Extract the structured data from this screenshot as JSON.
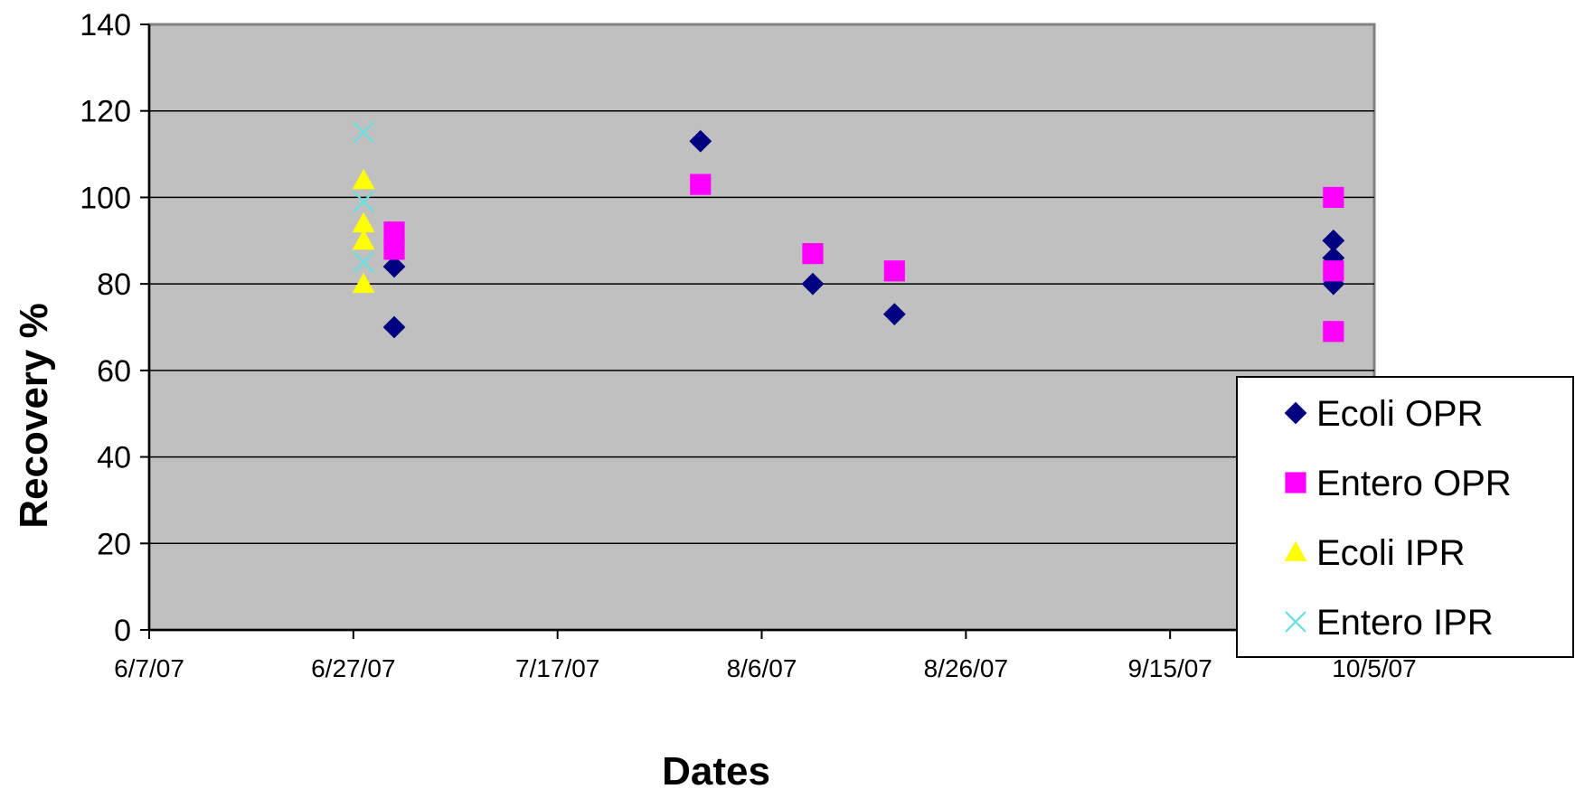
{
  "chart_data": {
    "type": "scatter",
    "title": "",
    "xlabel": "Dates",
    "ylabel": "Recovery %",
    "x_axis": {
      "type": "date",
      "min": "2007-06-07",
      "max": "2007-10-05",
      "ticks": [
        "2007-06-07",
        "2007-06-27",
        "2007-07-17",
        "2007-08-06",
        "2007-08-26",
        "2007-09-15",
        "2007-10-05"
      ],
      "tick_labels": [
        "6/7/07",
        "6/27/07",
        "7/17/07",
        "8/6/07",
        "8/26/07",
        "9/15/07",
        "10/5/07"
      ]
    },
    "y_axis": {
      "min": 0,
      "max": 140,
      "ticks": [
        0,
        20,
        40,
        60,
        80,
        100,
        120,
        140
      ],
      "tick_labels": [
        "0",
        "20",
        "40",
        "60",
        "80",
        "100",
        "120",
        "140"
      ]
    },
    "grid": {
      "y_major": true,
      "x_major": false
    },
    "plot_background": "#c0c0c0",
    "legend_position": "right",
    "series": [
      {
        "name": "Ecoli OPR",
        "marker": "diamond",
        "color": "#000080",
        "points": [
          {
            "x": "2007-07-01",
            "y": 84
          },
          {
            "x": "2007-07-01",
            "y": 70
          },
          {
            "x": "2007-07-31",
            "y": 113
          },
          {
            "x": "2007-08-11",
            "y": 80
          },
          {
            "x": "2007-08-19",
            "y": 73
          },
          {
            "x": "2007-10-01",
            "y": 90
          },
          {
            "x": "2007-10-01",
            "y": 86
          },
          {
            "x": "2007-10-01",
            "y": 80
          }
        ]
      },
      {
        "name": "Entero OPR",
        "marker": "square",
        "color": "#ff00ff",
        "points": [
          {
            "x": "2007-07-01",
            "y": 92
          },
          {
            "x": "2007-07-01",
            "y": 88
          },
          {
            "x": "2007-07-31",
            "y": 103
          },
          {
            "x": "2007-08-11",
            "y": 87
          },
          {
            "x": "2007-08-19",
            "y": 83
          },
          {
            "x": "2007-10-01",
            "y": 100
          },
          {
            "x": "2007-10-01",
            "y": 83
          },
          {
            "x": "2007-10-01",
            "y": 69
          }
        ]
      },
      {
        "name": "Ecoli IPR",
        "marker": "triangle",
        "color": "#ffff00",
        "points": [
          {
            "x": "2007-06-28",
            "y": 104
          },
          {
            "x": "2007-06-28",
            "y": 94
          },
          {
            "x": "2007-06-28",
            "y": 90
          },
          {
            "x": "2007-06-28",
            "y": 80
          }
        ]
      },
      {
        "name": "Entero IPR",
        "marker": "x",
        "color": "#66e0e0",
        "points": [
          {
            "x": "2007-06-28",
            "y": 115
          },
          {
            "x": "2007-06-28",
            "y": 99
          },
          {
            "x": "2007-06-28",
            "y": 85
          }
        ]
      }
    ]
  }
}
